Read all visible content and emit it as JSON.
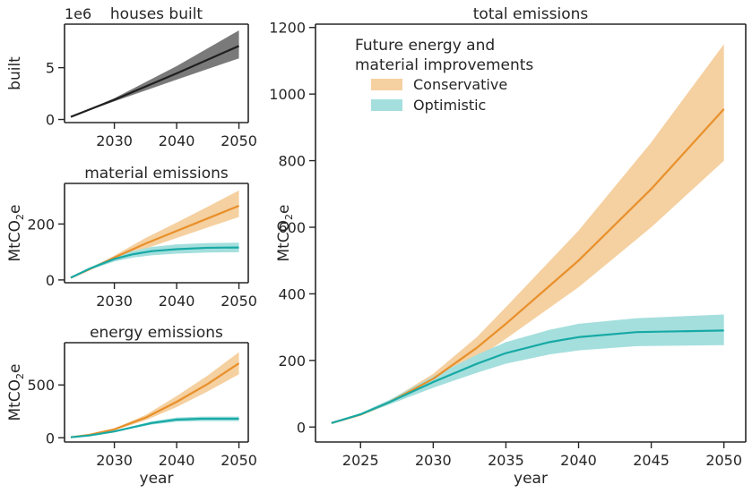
{
  "chart_data": [
    {
      "id": "houses",
      "type": "line",
      "title": "houses built",
      "ylabel": "built",
      "xlabel": "",
      "offset_label": "1e6",
      "xlim": [
        2022.0,
        2051.5
      ],
      "ylim": [
        -0.3,
        9.2
      ],
      "xticks": [
        2030,
        2040,
        2050
      ],
      "yticks": [
        0,
        5
      ],
      "series": [
        {
          "color": "#1f1f1f",
          "band_color": "#7a7a7a",
          "x": [
            2023,
            2030,
            2040,
            2050
          ],
          "y": [
            0.25,
            1.9,
            4.45,
            7.1
          ],
          "lower": [
            0.25,
            1.75,
            3.85,
            5.9
          ],
          "upper": [
            0.25,
            2.05,
            5.15,
            8.6
          ]
        }
      ]
    },
    {
      "id": "material",
      "type": "line",
      "title": "material emissions",
      "ylabel": "MtCO2e",
      "xlabel": "",
      "xlim": [
        2022.0,
        2051.5
      ],
      "ylim": [
        -10,
        345
      ],
      "xticks": [
        2030,
        2040,
        2050
      ],
      "yticks": [
        0,
        200
      ],
      "series": [
        {
          "color": "#e8902b",
          "band_color": "#f5d0a0",
          "x": [
            2023,
            2026,
            2030,
            2035,
            2040,
            2045,
            2050
          ],
          "y": [
            8,
            38,
            80,
            130,
            175,
            220,
            265
          ],
          "lower": [
            8,
            36,
            73,
            112,
            150,
            188,
            225
          ],
          "upper": [
            8,
            40,
            87,
            150,
            205,
            262,
            320
          ]
        },
        {
          "color": "#17a9a5",
          "band_color": "#a4dfdd",
          "x": [
            2023,
            2026,
            2030,
            2033,
            2036,
            2040,
            2045,
            2050
          ],
          "y": [
            8,
            40,
            75,
            92,
            103,
            110,
            115,
            116
          ],
          "lower": [
            8,
            36,
            66,
            80,
            88,
            94,
            98,
            99
          ],
          "upper": [
            8,
            44,
            84,
            104,
            118,
            127,
            132,
            133
          ]
        }
      ]
    },
    {
      "id": "energy",
      "type": "line",
      "title": "energy emissions",
      "ylabel": "MtCO2e",
      "xlabel": "year",
      "xlim": [
        2022.0,
        2051.5
      ],
      "ylim": [
        -40,
        900
      ],
      "xticks": [
        2030,
        2040,
        2050
      ],
      "yticks": [
        0,
        500
      ],
      "series": [
        {
          "color": "#e8902b",
          "band_color": "#f5d0a0",
          "x": [
            2023,
            2026,
            2030,
            2035,
            2040,
            2045,
            2050
          ],
          "y": [
            5,
            28,
            80,
            190,
            340,
            510,
            705
          ],
          "lower": [
            5,
            26,
            72,
            165,
            290,
            440,
            600
          ],
          "upper": [
            5,
            30,
            88,
            215,
            395,
            590,
            810
          ]
        },
        {
          "color": "#17a9a5",
          "band_color": "#a4dfdd",
          "x": [
            2023,
            2026,
            2030,
            2033,
            2036,
            2040,
            2044,
            2050
          ],
          "y": [
            5,
            22,
            60,
            100,
            140,
            172,
            180,
            180
          ],
          "lower": [
            5,
            20,
            54,
            90,
            125,
            152,
            158,
            158
          ],
          "upper": [
            5,
            24,
            66,
            110,
            155,
            192,
            200,
            200
          ]
        }
      ]
    },
    {
      "id": "total",
      "type": "line",
      "title": "total emissions",
      "ylabel": "MtCO2e",
      "xlabel": "year",
      "xlim": [
        2021.9,
        2051.5
      ],
      "ylim": [
        -45,
        1210
      ],
      "xticks": [
        2025,
        2030,
        2035,
        2040,
        2045,
        2050
      ],
      "yticks": [
        0,
        200,
        400,
        600,
        800,
        1000,
        1200
      ],
      "legend": {
        "title_lines": [
          "Future energy and",
          "material improvements"
        ],
        "entries": [
          "Conservative",
          "Optimistic"
        ],
        "placement": "top-left"
      },
      "series": [
        {
          "name": "Conservative",
          "color": "#e8902b",
          "band_color": "#f5d0a0",
          "x": [
            2023,
            2025,
            2027,
            2030,
            2033,
            2035,
            2040,
            2045,
            2050
          ],
          "y": [
            12,
            37,
            75,
            145,
            238,
            310,
            500,
            715,
            955
          ],
          "lower": [
            12,
            35,
            70,
            130,
            205,
            265,
            420,
            600,
            800
          ],
          "upper": [
            12,
            40,
            80,
            160,
            270,
            360,
            590,
            855,
            1150
          ]
        },
        {
          "name": "Optimistic",
          "color": "#17a9a5",
          "band_color": "#a4dfdd",
          "x": [
            2023,
            2025,
            2027,
            2030,
            2033,
            2035,
            2038,
            2040,
            2044,
            2050
          ],
          "y": [
            12,
            38,
            75,
            135,
            190,
            222,
            255,
            270,
            285,
            290
          ],
          "lower": [
            12,
            35,
            68,
            118,
            163,
            190,
            218,
            230,
            243,
            246
          ],
          "upper": [
            12,
            42,
            82,
            152,
            217,
            255,
            292,
            310,
            327,
            338
          ]
        }
      ]
    }
  ]
}
